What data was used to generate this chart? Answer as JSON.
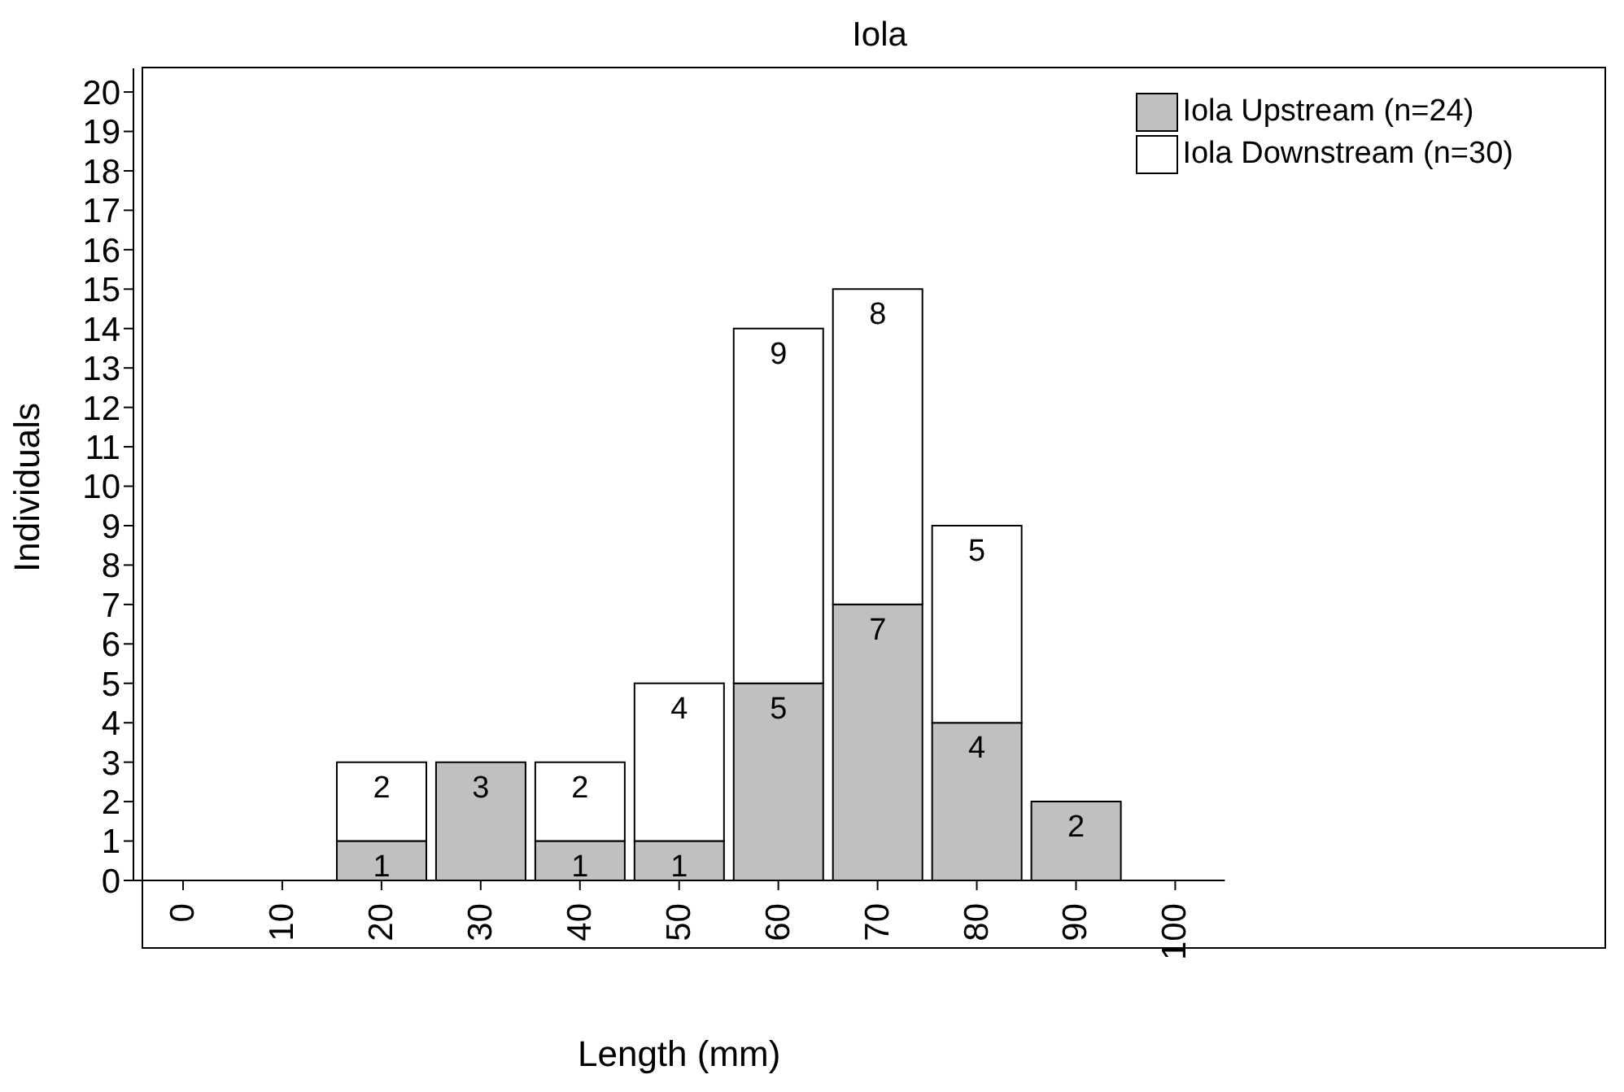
{
  "chart_data": {
    "type": "bar",
    "title": "Iola",
    "xlabel": "Length (mm)",
    "ylabel": "Individuals",
    "categories": [
      "0",
      "10",
      "20",
      "30",
      "40",
      "50",
      "60",
      "70",
      "80",
      "90",
      "100"
    ],
    "series": [
      {
        "name": "Iola Upstream (n=24)",
        "color": "#c0c0c0",
        "values": [
          null,
          null,
          1,
          3,
          1,
          1,
          5,
          7,
          4,
          2,
          null
        ]
      },
      {
        "name": "Iola Downstream (n=30)",
        "color": "#ffffff",
        "values": [
          null,
          null,
          2,
          null,
          2,
          4,
          9,
          8,
          5,
          null,
          null
        ]
      }
    ],
    "stacked": true,
    "data_labels": true,
    "ylim": [
      0,
      20.6
    ],
    "yticks": [
      0,
      1,
      2,
      3,
      4,
      5,
      6,
      7,
      8,
      9,
      10,
      11,
      12,
      13,
      14,
      15,
      16,
      17,
      18,
      19,
      20
    ],
    "grid": false,
    "legend": "top right"
  }
}
